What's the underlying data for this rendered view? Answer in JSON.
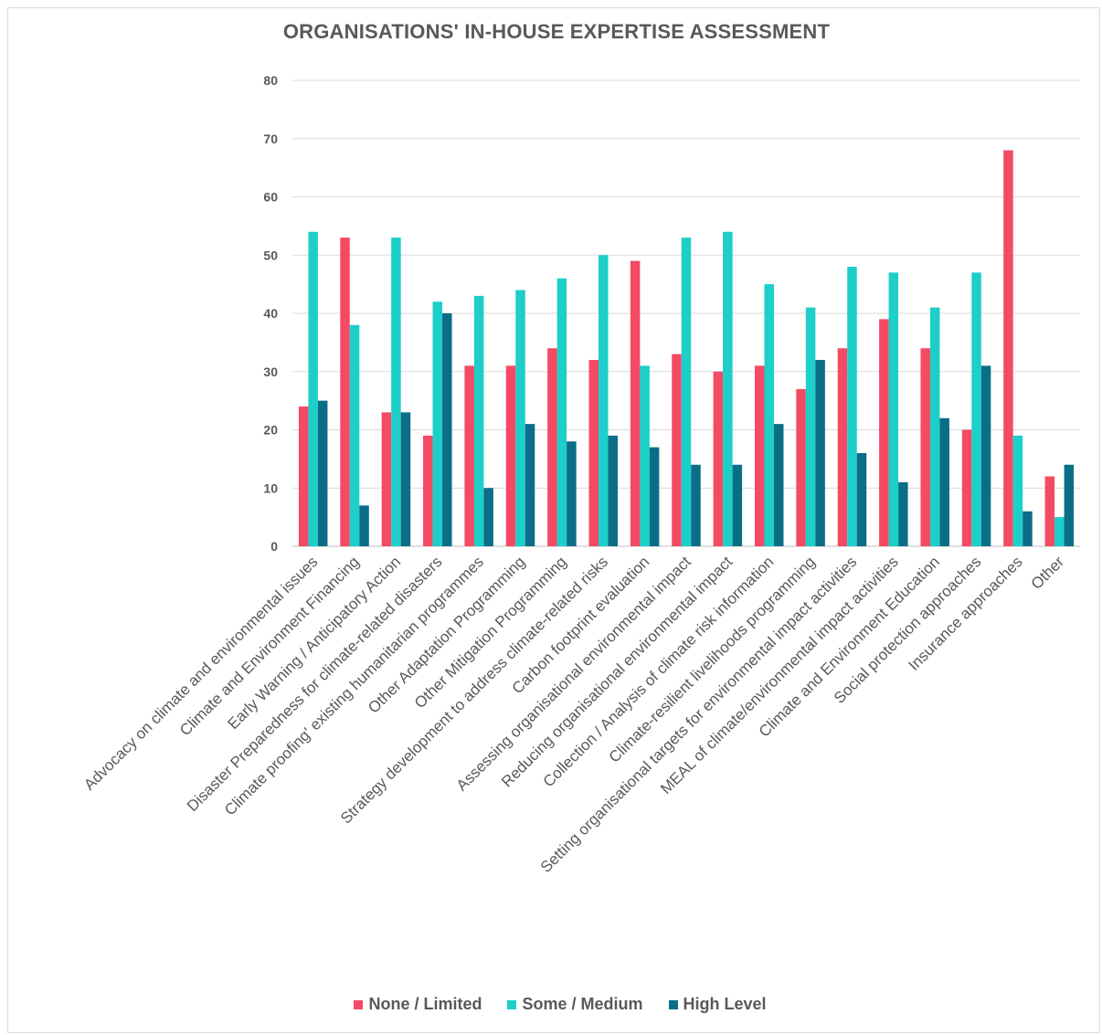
{
  "chart_data": {
    "type": "bar",
    "title": "ORGANISATIONS' IN-HOUSE EXPERTISE ASSESSMENT",
    "ylim": [
      0,
      80
    ],
    "yticks": [
      0,
      10,
      20,
      30,
      40,
      50,
      60,
      70,
      80
    ],
    "grid": true,
    "legend_position": "bottom",
    "categories": [
      "Advocacy on climate and environmental issues",
      "Climate and Environment Financing",
      "Early Warning / Anticipatory Action",
      "Disaster Preparedness for climate-related disasters",
      "Climate proofing' existing humanitarian  programmes",
      "Other Adaptation Programming",
      "Other Mitigation Programming",
      "Strategy development to address climate-related risks",
      "Carbon footprint evaluation",
      "Assessing organisational environmental impact",
      "Reducing organisational environmental impact",
      "Collection / Analysis of climate risk information",
      "Climate-resilient livelihoods programming",
      "Setting organisational targets for environmental impact activities",
      "MEAL of climate/environmental impact activities",
      "Climate and Environment Education",
      "Social protection approaches",
      "Insurance approaches",
      "Other"
    ],
    "series": [
      {
        "name": "None / Limited",
        "color": "#f44a64",
        "values": [
          24,
          53,
          23,
          19,
          31,
          31,
          34,
          32,
          49,
          33,
          30,
          31,
          27,
          34,
          39,
          34,
          20,
          68,
          12
        ]
      },
      {
        "name": "Some / Medium",
        "color": "#1ccfc9",
        "values": [
          54,
          38,
          53,
          42,
          43,
          44,
          46,
          50,
          31,
          53,
          54,
          45,
          41,
          48,
          47,
          41,
          47,
          19,
          5
        ]
      },
      {
        "name": "High Level",
        "color": "#0b6e87",
        "values": [
          25,
          7,
          23,
          40,
          10,
          21,
          18,
          19,
          17,
          14,
          14,
          21,
          32,
          16,
          11,
          22,
          31,
          6,
          14
        ]
      }
    ]
  }
}
